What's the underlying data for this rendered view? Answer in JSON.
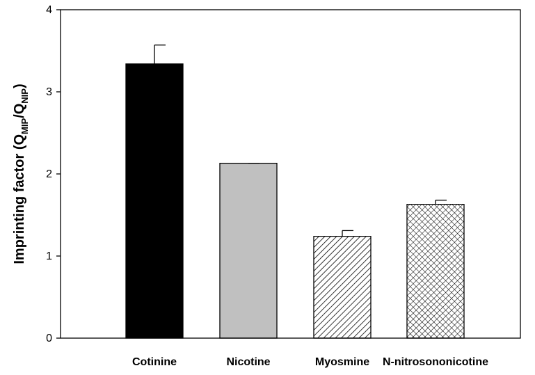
{
  "chart_data": {
    "type": "bar",
    "categories": [
      "Cotinine",
      "Nicotine",
      "Myosmine",
      "N-nitrosononicotine"
    ],
    "values": [
      3.34,
      2.13,
      1.24,
      1.63
    ],
    "errors": [
      0.23,
      0.0,
      0.07,
      0.05
    ],
    "fills": [
      "solid-black",
      "solid-gray",
      "diagonal-hatch",
      "crosshatch"
    ],
    "ylabel_main": "Imprinting factor (Q",
    "ylabel_sub1": "MIP",
    "ylabel_mid": "/Q",
    "ylabel_sub2": "NIP",
    "ylabel_end": ")",
    "ylim": [
      0,
      4
    ],
    "yticks": [
      "0",
      "1",
      "2",
      "3",
      "4"
    ],
    "grid": false,
    "colors": {
      "black": "#000000",
      "gray": "#c0c0c0",
      "white": "#ffffff"
    }
  }
}
